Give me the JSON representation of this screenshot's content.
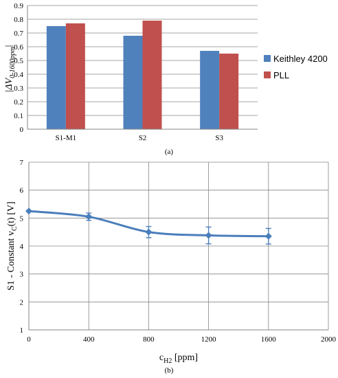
{
  "chart_data": [
    {
      "type": "bar",
      "caption": "(a)",
      "ylabel": "|ΔV",
      "ylabel_sub": "0-1600ppm",
      "ylabel_end": "|",
      "categories": [
        "S1-M1",
        "S2",
        "S3"
      ],
      "ylim": [
        0,
        0.9
      ],
      "yticks": [
        "0",
        "0.1",
        "0.2",
        "0.3",
        "0.4",
        "0.5",
        "0.6",
        "0.7",
        "0.8",
        "0.9"
      ],
      "series": [
        {
          "name": "Keithley 4200",
          "color": "#4f81bd",
          "values": [
            0.75,
            0.68,
            0.57
          ]
        },
        {
          "name": "PLL",
          "color": "#c0504d",
          "values": [
            0.77,
            0.79,
            0.55
          ]
        }
      ],
      "grid": true,
      "legend": "right"
    },
    {
      "type": "line",
      "caption": "(b)",
      "xlabel": "c",
      "xlabel_sub": "H2",
      "xlabel_end": " [ppm]",
      "ylabel": "S1 - Constant v",
      "ylabel_sub": "C",
      "ylabel_end": "(t) [V]",
      "xlim": [
        0,
        2000
      ],
      "ylim": [
        1,
        7
      ],
      "xticks": [
        "0",
        "400",
        "800",
        "1200",
        "1600",
        "2000"
      ],
      "yticks": [
        "1",
        "2",
        "3",
        "4",
        "5",
        "6",
        "7"
      ],
      "color": "#4a7ebb",
      "points": [
        {
          "x": 0,
          "y": 5.25,
          "err": 0
        },
        {
          "x": 400,
          "y": 5.05,
          "err": 0.13
        },
        {
          "x": 800,
          "y": 4.5,
          "err": 0.2
        },
        {
          "x": 1200,
          "y": 4.38,
          "err": 0.3
        },
        {
          "x": 1600,
          "y": 4.35,
          "err": 0.28
        }
      ],
      "grid": true
    }
  ]
}
